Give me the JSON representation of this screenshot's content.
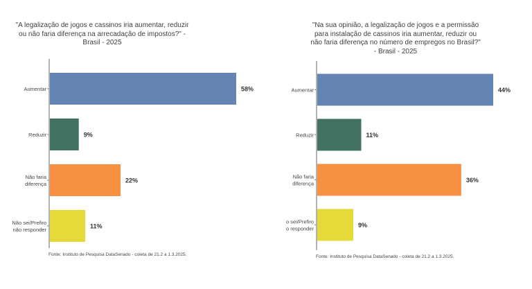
{
  "chart_data": [
    {
      "type": "bar",
      "orientation": "horizontal",
      "title": "\"A legalização de jogos e cassinos iria aumentar, reduzir ou não faria diferença na arrecadação de impostos?\" - Brasil - 2025",
      "categories": [
        "Aumentar",
        "Reduzir",
        "Não faria diferença",
        "Não sei/Prefiro não responder"
      ],
      "category_lines": [
        [
          "Aumentar"
        ],
        [
          "Reduzir"
        ],
        [
          "Não faria",
          "diferença"
        ],
        [
          "Não sei/Prefiro",
          "não responder"
        ]
      ],
      "values": [
        58,
        9,
        22,
        11
      ],
      "value_labels": [
        "58%",
        "9%",
        "22%",
        "11%"
      ],
      "colors": [
        "#6485b1",
        "#427360",
        "#f79141",
        "#e6d93a"
      ],
      "xlim": [
        0,
        60
      ],
      "source": "Fonte: Instituto de Pesquisa DataSenado - coleta de 21.2 a 1.3.2025."
    },
    {
      "type": "bar",
      "orientation": "horizontal",
      "title": "\"Na sua opinião, a legalização de jogos e a permissão para instalação de cassinos iria aumentar, reduzir ou não faria diferença no número de empregos no Brasil?\" - Brasil - 2025",
      "categories": [
        "Aumentar",
        "Reduzir",
        "Não faria diferença",
        "Não sei/Prefiro não responder"
      ],
      "category_lines": [
        [
          "Aumentar"
        ],
        [
          "Reduzir"
        ],
        [
          "Não faria",
          "diferença"
        ],
        [
          "o sei/Prefiro",
          "o responder"
        ]
      ],
      "values": [
        44,
        11,
        36,
        9
      ],
      "value_labels": [
        "44%",
        "11%",
        "36%",
        "9%"
      ],
      "colors": [
        "#6485b1",
        "#427360",
        "#f79141",
        "#e6d93a"
      ],
      "xlim": [
        0,
        45
      ],
      "source": "Fonte: Instituto de Pesquisa DataSenado - coleta de 21.2 a 1.3.2025."
    }
  ]
}
